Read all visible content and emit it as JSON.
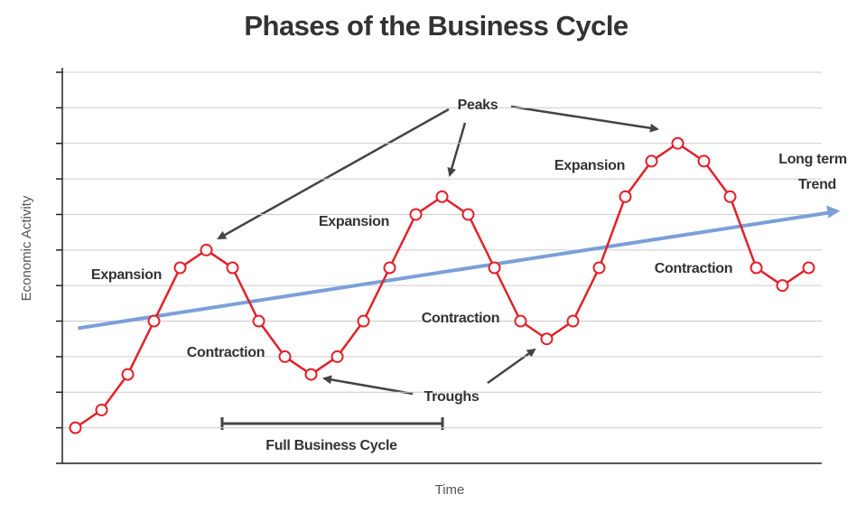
{
  "chart_data": {
    "type": "line",
    "title": "Phases of the Business Cycle",
    "y_label": "Economic Activity",
    "x_label": "Time",
    "x": [
      0,
      1,
      2,
      3,
      4,
      5,
      6,
      7,
      8,
      9,
      10,
      11,
      12,
      13,
      14,
      15,
      16,
      17,
      18,
      19,
      20,
      21,
      22,
      23,
      24,
      25,
      26,
      27,
      28
    ],
    "series": [
      {
        "color": "#e0222a",
        "values": [
          1,
          1.5,
          2.5,
          4,
          5.5,
          6,
          5.5,
          4,
          3,
          2.5,
          3,
          4,
          5.5,
          7,
          7.5,
          7,
          5.5,
          4,
          3.5,
          4,
          5.5,
          7.5,
          8.5,
          9,
          8.5,
          7.5,
          5.5,
          5,
          5.5
        ]
      }
    ],
    "trend": {
      "label": [
        "Long term",
        "Trend"
      ],
      "color": "#7b9fd9",
      "x": [
        0.1,
        29.2
      ],
      "values": [
        3.8,
        7.1
      ]
    },
    "xlim": [
      -0.5,
      28.5
    ],
    "ylim": [
      0,
      11
    ],
    "yticks": [
      0,
      1,
      2,
      3,
      4,
      5,
      6,
      7,
      8,
      9,
      10,
      11
    ],
    "grid": true,
    "annotations": [
      "Expansion",
      "Contraction",
      "Expansion",
      "Contraction",
      "Expansion",
      "Contraction",
      "Peaks",
      "Troughs",
      "Full Business Cycle"
    ]
  }
}
